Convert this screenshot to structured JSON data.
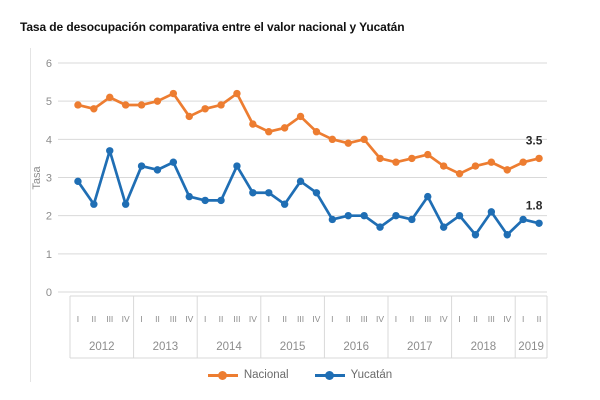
{
  "title": "Tasa de desocupación comparativa entre el valor nacional y Yucatán",
  "chart_data": {
    "type": "line",
    "title": "Tasa de desocupación comparativa entre el valor nacional y Yucatán",
    "ylabel": "Tasa",
    "ylim": [
      0,
      6
    ],
    "yticks": [
      0,
      1,
      2,
      3,
      4,
      5,
      6
    ],
    "grid": true,
    "legend_position": "bottom",
    "x_groups": [
      {
        "year": "2012",
        "quarters": [
          "I",
          "II",
          "III",
          "IV"
        ]
      },
      {
        "year": "2013",
        "quarters": [
          "I",
          "II",
          "III",
          "IV"
        ]
      },
      {
        "year": "2014",
        "quarters": [
          "I",
          "II",
          "III",
          "IV"
        ]
      },
      {
        "year": "2015",
        "quarters": [
          "I",
          "II",
          "III",
          "IV"
        ]
      },
      {
        "year": "2016",
        "quarters": [
          "I",
          "II",
          "III",
          "IV"
        ]
      },
      {
        "year": "2017",
        "quarters": [
          "I",
          "II",
          "III",
          "IV"
        ]
      },
      {
        "year": "2018",
        "quarters": [
          "I",
          "II",
          "III",
          "IV"
        ]
      },
      {
        "year": "2019",
        "quarters": [
          "I",
          "II"
        ]
      }
    ],
    "series": [
      {
        "name": "Nacional",
        "color": "#ED7D31",
        "last_value_label": "3.5",
        "values": [
          4.9,
          4.8,
          5.1,
          4.9,
          4.9,
          5.0,
          5.2,
          4.6,
          4.8,
          4.9,
          5.2,
          4.4,
          4.2,
          4.3,
          4.6,
          4.2,
          4.0,
          3.9,
          4.0,
          3.5,
          3.4,
          3.5,
          3.6,
          3.3,
          3.1,
          3.3,
          3.4,
          3.2,
          3.4,
          3.5
        ]
      },
      {
        "name": "Yucatán",
        "color": "#1F6EB4",
        "last_value_label": "1.8",
        "values": [
          2.9,
          2.3,
          3.7,
          2.3,
          3.3,
          3.2,
          3.4,
          2.5,
          2.4,
          2.4,
          3.3,
          2.6,
          2.6,
          2.3,
          2.9,
          2.6,
          1.9,
          2.0,
          2.0,
          1.7,
          2.0,
          1.9,
          2.5,
          1.7,
          2.0,
          1.5,
          2.1,
          1.5,
          1.9,
          1.8
        ]
      }
    ],
    "colors": {
      "grid": "#D9D9D9",
      "axis_text": "#8C8C8C",
      "end_label_text": "#2B2B2B"
    }
  }
}
